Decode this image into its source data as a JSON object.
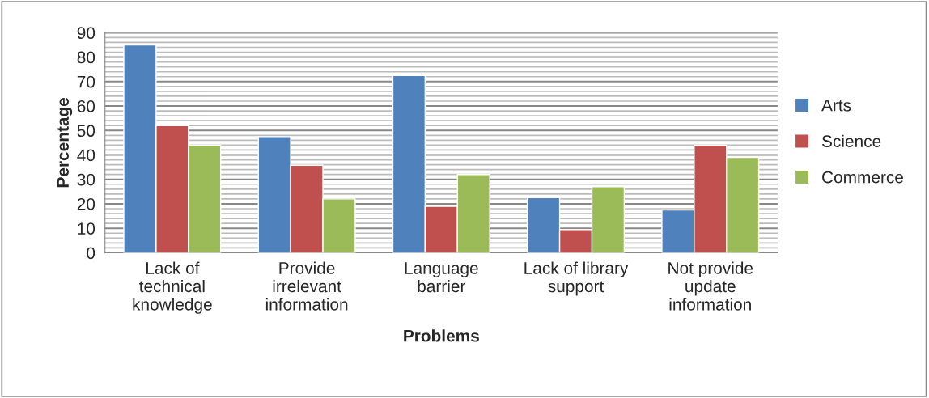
{
  "chart_data": {
    "type": "bar",
    "xlabel": "Problems",
    "ylabel": "Percentage",
    "categories": [
      "Lack of\ntechnical\nknowledge",
      "Provide\nirrelevant\ninformation",
      "Language\nbarrier",
      "Lack of library\nsupport",
      "Not provide\nupdate\ninformation"
    ],
    "series": [
      {
        "name": "Arts",
        "color": "#4f81bd",
        "values": [
          85,
          47.5,
          72.5,
          22.5,
          17.5
        ]
      },
      {
        "name": "Science",
        "color": "#c0504d",
        "values": [
          52,
          35.8,
          19,
          9.5,
          44
        ]
      },
      {
        "name": "Commerce",
        "color": "#9bbb59",
        "values": [
          44,
          22,
          32,
          27,
          39
        ]
      }
    ],
    "ylim": [
      0,
      90
    ],
    "yticks": [
      0,
      10,
      20,
      30,
      40,
      50,
      60,
      70,
      80,
      90
    ],
    "grid": "y",
    "legend": "right"
  }
}
